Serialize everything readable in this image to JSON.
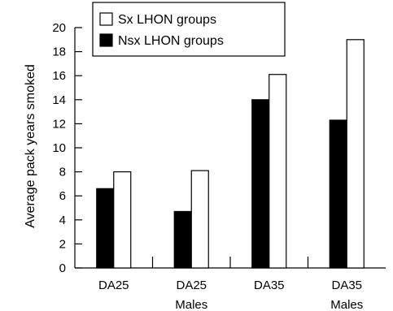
{
  "chart_data": {
    "type": "bar",
    "categories": [
      "DA25",
      "DA25",
      "DA35",
      "DA35"
    ],
    "category_sublabels": [
      "",
      "Males",
      "",
      "Males"
    ],
    "series": [
      {
        "name": "Nsx LHON groups",
        "values": [
          6.6,
          4.7,
          14.0,
          12.3
        ],
        "color": "#000000"
      },
      {
        "name": "Sx LHON groups",
        "values": [
          8.0,
          8.1,
          16.1,
          19.0
        ],
        "color": "#ffffff"
      }
    ],
    "legend_order": [
      "Sx LHON groups",
      "Nsx LHON groups"
    ],
    "ylabel": "Average pack years smoked",
    "xlabel": "",
    "ylim": [
      0,
      20
    ],
    "yticks": [
      0,
      2,
      4,
      6,
      8,
      10,
      12,
      14,
      16,
      18,
      20
    ],
    "grid": false,
    "legend_position": "top-left"
  }
}
